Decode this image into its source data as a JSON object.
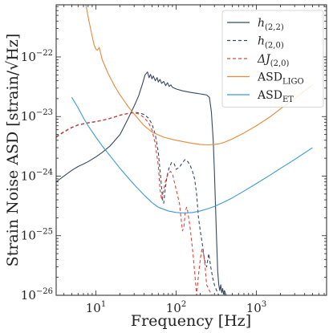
{
  "chart_data": {
    "type": "line",
    "xlabel": "Frequency [Hz]",
    "ylabel": "Strain Noise ASD [strain/√Hz]",
    "xscale": "log",
    "yscale": "log",
    "xlim": [
      3.2,
      7500
    ],
    "ylim": [
      1e-26,
      7.5e-22
    ],
    "xticks": [
      {
        "value": 10,
        "base": "10",
        "exp": "1"
      },
      {
        "value": 100,
        "base": "10",
        "exp": "2"
      },
      {
        "value": 1000,
        "base": "10",
        "exp": "3"
      }
    ],
    "yticks": [
      {
        "value": 1e-26,
        "base": "10",
        "exp": "−26"
      },
      {
        "value": 1e-25,
        "base": "10",
        "exp": "−25"
      },
      {
        "value": 1e-24,
        "base": "10",
        "exp": "−24"
      },
      {
        "value": 1e-23,
        "base": "10",
        "exp": "−23"
      },
      {
        "value": 1e-22,
        "base": "10",
        "exp": "−22"
      }
    ],
    "legend_position": "top-right",
    "series": [
      {
        "name": "h(2,2)",
        "label_main": "h",
        "label_sub": "(2,2)",
        "italic": true,
        "color": "#34495e",
        "dash": "",
        "x": [
          3.2,
          4,
          5,
          6,
          7,
          8,
          10,
          12,
          15,
          20,
          25,
          30,
          34,
          38,
          41,
          44,
          46,
          48,
          50,
          52,
          55,
          58,
          60,
          63,
          66,
          70,
          74,
          78,
          82,
          86,
          90,
          100,
          120,
          150,
          180,
          200,
          220,
          240,
          260,
          275,
          290,
          300,
          310,
          320,
          330,
          340,
          350,
          360,
          370,
          380,
          390,
          400,
          420
        ],
        "y": [
          8e-25,
          1e-24,
          1.25e-24,
          1.45e-24,
          1.6e-24,
          1.75e-24,
          2.1e-24,
          2.5e-24,
          3.2e-24,
          5e-24,
          9e-24,
          1.5e-23,
          2.2e-23,
          3.5e-23,
          5e-23,
          5.6e-23,
          4.5e-23,
          5.1e-23,
          4.3e-23,
          4.8e-23,
          4e-23,
          4.5e-23,
          3.8e-23,
          4.2e-23,
          3.6e-23,
          3.9e-23,
          3.3e-23,
          3.7e-23,
          3.2e-23,
          3.4e-23,
          3.1e-23,
          2.9e-23,
          2.7e-23,
          2.55e-23,
          2.45e-23,
          2.4e-23,
          2.35e-23,
          2.3e-23,
          2.1e-23,
          1.2e-23,
          4e-24,
          1.2e-24,
          3e-25,
          8e-26,
          2.5e-26,
          1.5e-26,
          1.2e-26,
          1.5e-26,
          1.1e-26,
          1.3e-26,
          1.05e-26,
          1.2e-26,
          1e-26
        ]
      },
      {
        "name": "h(2,0)",
        "label_main": "h",
        "label_sub": "(2,0)",
        "italic": true,
        "color": "#34495e",
        "dash": "4,3",
        "x": [
          3.2,
          4,
          5,
          6,
          8,
          10,
          13,
          16,
          20,
          25,
          30,
          35,
          40,
          45,
          50,
          55,
          60,
          64,
          68,
          70,
          73,
          77,
          82,
          88,
          95,
          100,
          110,
          120,
          130,
          140,
          150,
          160,
          170,
          180,
          190,
          200,
          210,
          225,
          240,
          255,
          270,
          285,
          300,
          320,
          340
        ],
        "y": [
          4.5e-24,
          5.5e-24,
          6.5e-24,
          7.2e-24,
          7.8e-24,
          8.2e-24,
          8.8e-24,
          9.5e-24,
          1.05e-23,
          1.12e-23,
          1.18e-23,
          1.15e-23,
          1.08e-23,
          9.5e-24,
          7.5e-24,
          5e-24,
          2.5e-24,
          1e-24,
          4e-25,
          3.5e-25,
          6e-25,
          1e-24,
          1.4e-24,
          1.7e-24,
          1.6e-24,
          1.3e-24,
          1.4e-24,
          1.7e-24,
          1.9e-24,
          1.75e-24,
          1.5e-24,
          1.2e-24,
          9e-25,
          5e-25,
          2e-25,
          1.2e-25,
          8e-26,
          4e-26,
          3e-26,
          5e-26,
          3e-26,
          2e-26,
          1.5e-26,
          1.2e-26,
          1e-26
        ]
      },
      {
        "name": "ΔJ(2,0)",
        "label_main": "ΔJ",
        "label_sub": "(2,0)",
        "italic": true,
        "color": "#e0433c",
        "dash": "4,3",
        "x": [
          3.2,
          4,
          5,
          6,
          8,
          10,
          13,
          16,
          20,
          25,
          30,
          35,
          40,
          45,
          50,
          55,
          60,
          63,
          66,
          70,
          75,
          80,
          85,
          90,
          95,
          100,
          110,
          115,
          120,
          125,
          130,
          135,
          140,
          145,
          150,
          160,
          170,
          180,
          185,
          190,
          200,
          210,
          220,
          230,
          240,
          260,
          280
        ],
        "y": [
          4.6e-24,
          5.6e-24,
          6.6e-24,
          7.3e-24,
          7.9e-24,
          8.3e-24,
          8.9e-24,
          9.6e-24,
          1.06e-23,
          1.13e-23,
          1.15e-23,
          1.1e-23,
          9.5e-24,
          8e-24,
          6e-24,
          3.5e-24,
          1.5e-24,
          6e-25,
          4e-25,
          6e-25,
          9e-25,
          1.1e-24,
          1.2e-24,
          1.1e-24,
          8e-25,
          6e-25,
          3.5e-25,
          2e-25,
          1.2e-25,
          1.4e-25,
          2.5e-25,
          3e-25,
          2.5e-25,
          1.8e-25,
          1.3e-25,
          6e-26,
          2.5e-26,
          1e-26,
          1.5e-26,
          2.2e-26,
          4e-26,
          6e-26,
          5e-26,
          3e-26,
          1.5e-26,
          1.2e-26,
          1e-26
        ]
      },
      {
        "name": "ASD_LIGO",
        "label_main": "ASD",
        "label_sub": "LIGO",
        "italic": false,
        "color": "#e8893a",
        "dash": "",
        "x": [
          7.5,
          8.2,
          9,
          9.5,
          10,
          10.5,
          11,
          12,
          14,
          17,
          20,
          25,
          30,
          40,
          50,
          70,
          100,
          150,
          200,
          250,
          300,
          350,
          400,
          500,
          700,
          1000,
          1500,
          2000,
          3000,
          5000
        ],
        "y": [
          7.5e-22,
          4e-22,
          2.2e-22,
          1.6e-22,
          1.35e-22,
          1.3e-22,
          1.45e-22,
          9e-23,
          5.5e-23,
          3.3e-23,
          2.3e-23,
          1.5e-23,
          1.1e-23,
          7e-24,
          5.5e-24,
          4.5e-24,
          4e-24,
          3.6e-24,
          3.4e-24,
          3.35e-24,
          3.4e-24,
          3.5e-24,
          3.7e-24,
          4.2e-24,
          5.3e-24,
          7e-24,
          1e-23,
          1.35e-23,
          2e-23,
          3.4e-23
        ]
      },
      {
        "name": "ASD_ET",
        "label_main": "ASD",
        "label_sub": "ET",
        "italic": false,
        "color": "#3a9ad3",
        "dash": "",
        "x": [
          5,
          6,
          7,
          8,
          10,
          12,
          15,
          20,
          25,
          30,
          40,
          50,
          60,
          80,
          100,
          130,
          160,
          200,
          250,
          300,
          400,
          500,
          700,
          1000,
          1500,
          2000,
          3000,
          5000
        ],
        "y": [
          2.1e-23,
          1.4e-23,
          9.5e-24,
          7e-24,
          4.5e-24,
          3.2e-24,
          2.2e-24,
          1.35e-24,
          9.5e-25,
          7.2e-25,
          4.8e-25,
          3.6e-25,
          3e-25,
          2.6e-25,
          2.45e-25,
          2.4e-25,
          2.45e-25,
          2.6e-25,
          2.85e-25,
          3.1e-25,
          3.7e-25,
          4.3e-25,
          5.6e-25,
          7.5e-25,
          1.05e-24,
          1.35e-24,
          1.9e-24,
          3e-24
        ]
      }
    ]
  }
}
